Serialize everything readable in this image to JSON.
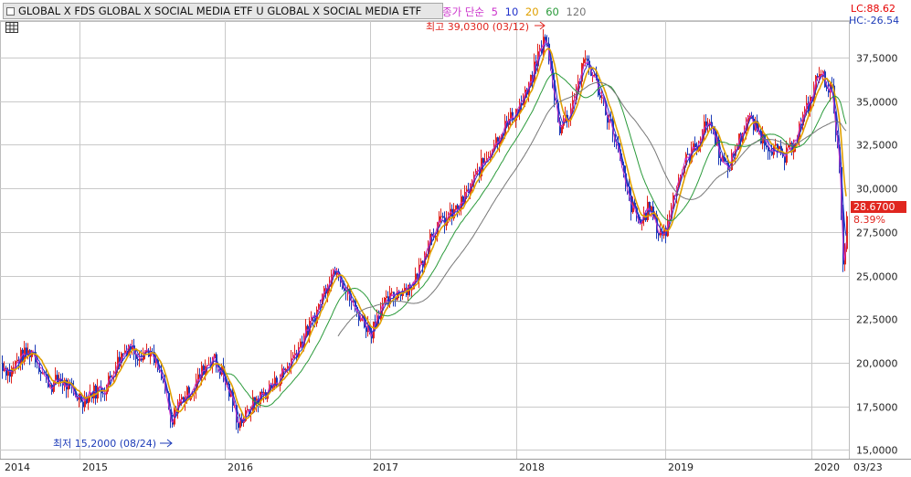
{
  "header": {
    "title": "GLOBAL X FDS GLOBAL X SOCIAL MEDIA ETF U  GLOBAL X SOCIAL MEDIA ETF",
    "legend_prefix": "종가 단순",
    "ma_labels": [
      {
        "label": "5",
        "color": "#cc33cc"
      },
      {
        "label": "10",
        "color": "#2233cc"
      },
      {
        "label": "20",
        "color": "#e0a000"
      },
      {
        "label": "60",
        "color": "#2a9a3a"
      },
      {
        "label": "120",
        "color": "#777777"
      }
    ]
  },
  "right_panel": {
    "lc": "LC:88.62",
    "hc": "HC:-26.54",
    "current_price": "28.6700",
    "change_pct": "8.39%"
  },
  "colors": {
    "up": "#e0261f",
    "down": "#1c3bb8",
    "grid": "#c9c9c9",
    "ma5": "#cc33cc",
    "ma10": "#2233cc",
    "ma20": "#e0a000",
    "ma60": "#2a9a3a",
    "ma120": "#777777"
  },
  "chart_data": {
    "type": "candlestick",
    "y_axis": {
      "ylim": [
        14500,
        39600
      ],
      "ticks": [
        "15,0000",
        "17,5000",
        "20,0000",
        "22,5000",
        "25,0000",
        "27,5000",
        "30,0000",
        "32,5000",
        "35,0000",
        "37,5000"
      ]
    },
    "x_axis": {
      "ticks": [
        "2014",
        "2015",
        "2016",
        "2017",
        "2018",
        "2019",
        "2020",
        "03/23"
      ]
    },
    "annotations": [
      {
        "text": "최고 39,0300 (03/12)",
        "value": 39030,
        "date": "2018-03-12",
        "type": "high"
      },
      {
        "text": "최저 15,2000 (08/24)",
        "value": 15200,
        "date": "2015-08-24",
        "type": "low"
      }
    ],
    "price_path": [
      [
        0,
        20000
      ],
      [
        10,
        19400
      ],
      [
        20,
        20300
      ],
      [
        35,
        20700
      ],
      [
        45,
        19500
      ],
      [
        55,
        18700
      ],
      [
        65,
        19100
      ],
      [
        75,
        18500
      ],
      [
        90,
        17900
      ],
      [
        100,
        18300
      ],
      [
        115,
        18600
      ],
      [
        130,
        20300
      ],
      [
        140,
        21000
      ],
      [
        150,
        20500
      ],
      [
        162,
        20700
      ],
      [
        172,
        19600
      ],
      [
        180,
        18500
      ],
      [
        187,
        16200
      ],
      [
        192,
        17500
      ],
      [
        200,
        18000
      ],
      [
        212,
        18600
      ],
      [
        222,
        19700
      ],
      [
        232,
        20300
      ],
      [
        242,
        19500
      ],
      [
        252,
        18000
      ],
      [
        260,
        16600
      ],
      [
        268,
        16900
      ],
      [
        278,
        17800
      ],
      [
        290,
        18300
      ],
      [
        300,
        18800
      ],
      [
        315,
        19900
      ],
      [
        330,
        21300
      ],
      [
        345,
        22800
      ],
      [
        358,
        24700
      ],
      [
        368,
        25600
      ],
      [
        376,
        24300
      ],
      [
        388,
        23100
      ],
      [
        398,
        22300
      ],
      [
        405,
        21700
      ],
      [
        413,
        22900
      ],
      [
        425,
        23600
      ],
      [
        438,
        24200
      ],
      [
        452,
        24500
      ],
      [
        460,
        25700
      ],
      [
        470,
        27300
      ],
      [
        480,
        28000
      ],
      [
        492,
        28400
      ],
      [
        505,
        29200
      ],
      [
        515,
        30200
      ],
      [
        525,
        31200
      ],
      [
        540,
        32600
      ],
      [
        555,
        33800
      ],
      [
        568,
        34700
      ],
      [
        578,
        35700
      ],
      [
        588,
        37600
      ],
      [
        596,
        38700
      ],
      [
        604,
        36000
      ],
      [
        612,
        33500
      ],
      [
        622,
        34300
      ],
      [
        632,
        36000
      ],
      [
        640,
        37500
      ],
      [
        652,
        36000
      ],
      [
        662,
        34500
      ],
      [
        672,
        33000
      ],
      [
        680,
        31000
      ],
      [
        690,
        29000
      ],
      [
        700,
        28000
      ],
      [
        710,
        29000
      ],
      [
        720,
        27500
      ],
      [
        728,
        27500
      ],
      [
        738,
        30000
      ],
      [
        750,
        31600
      ],
      [
        762,
        32500
      ],
      [
        775,
        34000
      ],
      [
        787,
        32000
      ],
      [
        795,
        31000
      ],
      [
        808,
        32800
      ],
      [
        818,
        34000
      ],
      [
        828,
        33300
      ],
      [
        838,
        32600
      ],
      [
        848,
        32200
      ],
      [
        858,
        31700
      ],
      [
        868,
        32700
      ],
      [
        878,
        34000
      ],
      [
        888,
        35300
      ],
      [
        895,
        36700
      ],
      [
        902,
        36200
      ],
      [
        910,
        35500
      ],
      [
        916,
        32500
      ],
      [
        919,
        30300
      ],
      [
        921,
        26300
      ],
      [
        923,
        25000
      ],
      [
        926,
        28700
      ]
    ],
    "moving_averages": [
      {
        "name": "5",
        "period": 5
      },
      {
        "name": "10",
        "period": 10
      },
      {
        "name": "20",
        "period": 20
      },
      {
        "name": "60",
        "period": 60
      },
      {
        "name": "120",
        "period": 120
      }
    ]
  }
}
